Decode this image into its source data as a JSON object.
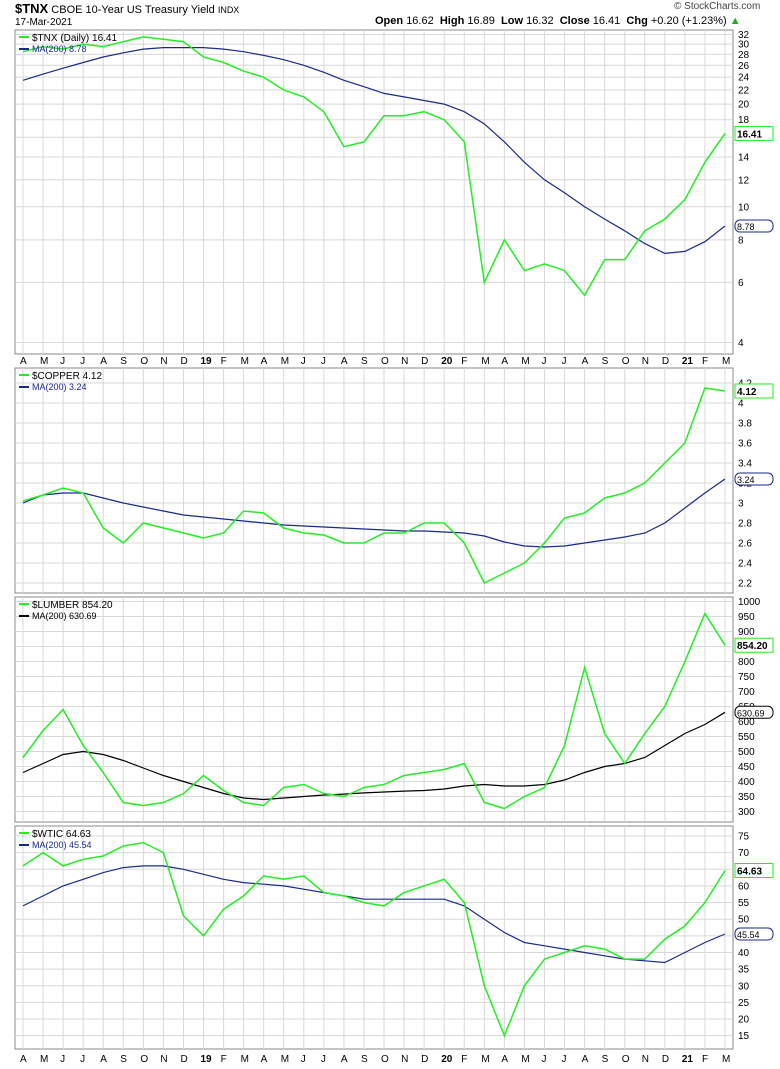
{
  "header": {
    "symbol": "$TNX",
    "description": "CBOE 10-Year US Treasury Yield",
    "exchange": "INDX",
    "date": "17-Mar-2021",
    "open_label": "Open",
    "open": "16.62",
    "high_label": "High",
    "high": "16.89",
    "low_label": "Low",
    "low": "16.32",
    "close_label": "Close",
    "close": "16.41",
    "chg_label": "Chg",
    "chg": "+0.20 (+1.23%)",
    "chg_arrow": "▲",
    "watermark": "© StockCharts.com"
  },
  "colors": {
    "price": "#22ee22",
    "ma_blue": "#1a2a8a",
    "ma_black": "#000000",
    "grid": "#d8d8d8",
    "axis": "#888888"
  },
  "x_axis": {
    "labels": [
      "A",
      "M",
      "J",
      "J",
      "A",
      "S",
      "O",
      "N",
      "D",
      "19",
      "F",
      "M",
      "A",
      "M",
      "J",
      "J",
      "A",
      "S",
      "O",
      "N",
      "D",
      "20",
      "F",
      "M",
      "A",
      "M",
      "J",
      "J",
      "A",
      "S",
      "O",
      "N",
      "D",
      "21",
      "F",
      "M"
    ],
    "bold": [
      "19",
      "20",
      "21"
    ]
  },
  "chart_data": [
    {
      "type": "line",
      "title": "$TNX (Daily) 16.41",
      "ma_label": "MA(200) 8.78",
      "scale": "log",
      "ylim": [
        3.7,
        33
      ],
      "yticks": [
        4,
        6,
        8,
        10,
        12,
        14,
        16,
        18,
        20,
        22,
        24,
        26,
        28,
        30,
        32
      ],
      "last_value": "16.41",
      "ma_last": "8.78",
      "x": [
        0,
        1,
        2,
        3,
        4,
        5,
        6,
        7,
        8,
        9,
        10,
        11,
        12,
        13,
        14,
        15,
        16,
        17,
        18,
        19,
        20,
        21,
        22,
        23,
        24,
        25,
        26,
        27,
        28,
        29,
        30,
        31,
        32,
        33,
        34,
        35
      ],
      "series": [
        {
          "name": "$TNX",
          "values": [
            28.5,
            29.5,
            29,
            30,
            29.5,
            30.5,
            31.5,
            31,
            30.5,
            27.5,
            26.5,
            25,
            24,
            22,
            21,
            19,
            15,
            15.5,
            18.5,
            18.5,
            19,
            18,
            15.5,
            6,
            8,
            6.5,
            6.8,
            6.5,
            5.5,
            7,
            7,
            8.5,
            9.2,
            10.5,
            13.5,
            16.41
          ]
        },
        {
          "name": "MA(200)",
          "values": [
            23.5,
            24.5,
            25.5,
            26.5,
            27.5,
            28.3,
            29,
            29.3,
            29.3,
            29.3,
            29,
            28.5,
            27.8,
            27,
            26,
            24.8,
            23.5,
            22.5,
            21.5,
            21,
            20.5,
            20,
            19,
            17.5,
            15.5,
            13.5,
            12,
            11,
            10,
            9.2,
            8.5,
            7.8,
            7.3,
            7.4,
            7.9,
            8.78
          ]
        }
      ]
    },
    {
      "type": "line",
      "title": "$COPPER 4.12",
      "ma_label": "MA(200) 3.24",
      "ylim": [
        2.1,
        4.35
      ],
      "yticks": [
        2.2,
        2.4,
        2.6,
        2.8,
        3.0,
        3.2,
        3.4,
        3.6,
        3.8,
        4.0,
        4.2
      ],
      "last_value": "4.12",
      "ma_last": "3.24",
      "x": [
        0,
        1,
        2,
        3,
        4,
        5,
        6,
        7,
        8,
        9,
        10,
        11,
        12,
        13,
        14,
        15,
        16,
        17,
        18,
        19,
        20,
        21,
        22,
        23,
        24,
        25,
        26,
        27,
        28,
        29,
        30,
        31,
        32,
        33,
        34,
        35
      ],
      "series": [
        {
          "name": "$COPPER",
          "values": [
            3.02,
            3.08,
            3.15,
            3.1,
            2.75,
            2.6,
            2.8,
            2.75,
            2.7,
            2.65,
            2.7,
            2.92,
            2.9,
            2.75,
            2.7,
            2.68,
            2.6,
            2.6,
            2.7,
            2.7,
            2.8,
            2.8,
            2.6,
            2.2,
            2.3,
            2.4,
            2.6,
            2.85,
            2.9,
            3.05,
            3.1,
            3.2,
            3.4,
            3.6,
            4.15,
            4.12
          ]
        },
        {
          "name": "MA(200)",
          "values": [
            3.0,
            3.08,
            3.1,
            3.1,
            3.05,
            3.0,
            2.96,
            2.92,
            2.88,
            2.86,
            2.84,
            2.82,
            2.8,
            2.78,
            2.77,
            2.76,
            2.75,
            2.74,
            2.73,
            2.72,
            2.72,
            2.71,
            2.7,
            2.67,
            2.61,
            2.57,
            2.56,
            2.57,
            2.6,
            2.63,
            2.66,
            2.7,
            2.8,
            2.95,
            3.1,
            3.24
          ]
        }
      ]
    },
    {
      "type": "line",
      "title": "$LUMBER 854.20",
      "ma_label": "MA(200) 630.69",
      "ylim": [
        265,
        1015
      ],
      "yticks": [
        300,
        350,
        400,
        450,
        500,
        550,
        600,
        650,
        700,
        750,
        800,
        850,
        900,
        950,
        1000
      ],
      "last_value": "854.20",
      "ma_last": "630.69",
      "x": [
        0,
        1,
        2,
        3,
        4,
        5,
        6,
        7,
        8,
        9,
        10,
        11,
        12,
        13,
        14,
        15,
        16,
        17,
        18,
        19,
        20,
        21,
        22,
        23,
        24,
        25,
        26,
        27,
        28,
        29,
        30,
        31,
        32,
        33,
        34,
        35
      ],
      "series": [
        {
          "name": "$LUMBER",
          "values": [
            480,
            570,
            640,
            520,
            430,
            330,
            320,
            330,
            360,
            420,
            370,
            330,
            320,
            380,
            390,
            360,
            350,
            380,
            390,
            420,
            430,
            440,
            460,
            330,
            310,
            350,
            380,
            520,
            780,
            560,
            460,
            560,
            650,
            800,
            960,
            854.2
          ]
        },
        {
          "name": "MA(200)",
          "values": [
            430,
            460,
            490,
            500,
            490,
            470,
            445,
            420,
            400,
            380,
            360,
            345,
            340,
            345,
            350,
            355,
            358,
            362,
            365,
            368,
            370,
            375,
            385,
            390,
            385,
            385,
            390,
            405,
            430,
            450,
            460,
            480,
            520,
            560,
            590,
            630.69
          ]
        }
      ]
    },
    {
      "type": "line",
      "title": "$WTIC 64.63",
      "ma_label": "MA(200) 45.54",
      "ylim": [
        11,
        78
      ],
      "yticks": [
        15,
        20,
        25,
        30,
        35,
        40,
        45,
        50,
        55,
        60,
        65,
        70,
        75
      ],
      "last_value": "64.63",
      "ma_last": "45.54",
      "x": [
        0,
        1,
        2,
        3,
        4,
        5,
        6,
        7,
        8,
        9,
        10,
        11,
        12,
        13,
        14,
        15,
        16,
        17,
        18,
        19,
        20,
        21,
        22,
        23,
        24,
        25,
        26,
        27,
        28,
        29,
        30,
        31,
        32,
        33,
        34,
        35
      ],
      "series": [
        {
          "name": "$WTIC",
          "values": [
            66,
            70,
            66,
            68,
            69,
            72,
            73,
            70,
            51,
            45,
            53,
            57,
            63,
            62,
            63,
            58,
            57,
            55,
            54,
            58,
            60,
            62,
            55,
            30,
            15,
            30,
            38,
            40,
            42,
            41,
            38,
            38,
            44,
            48,
            55,
            64.63
          ]
        },
        {
          "name": "MA(200)",
          "values": [
            54,
            57,
            60,
            62,
            64,
            65.5,
            66,
            66,
            65,
            63.5,
            62,
            61,
            60.5,
            60,
            59,
            58,
            57,
            56,
            56,
            56,
            56,
            56,
            54,
            50,
            46,
            43,
            42,
            41,
            40,
            39,
            38,
            37.5,
            37,
            40,
            43,
            45.54
          ]
        }
      ]
    }
  ]
}
